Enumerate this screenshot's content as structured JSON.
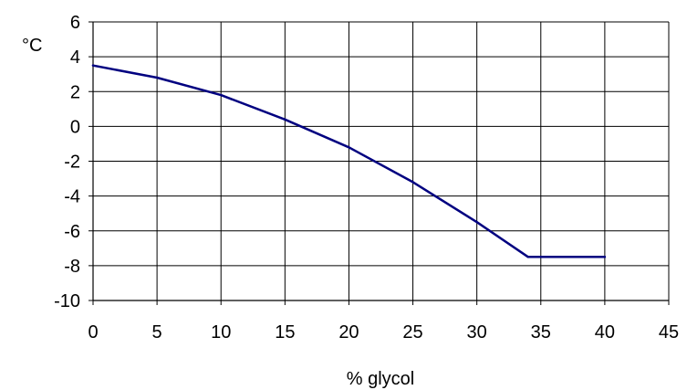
{
  "chart_data": {
    "type": "line",
    "xlabel": "% glycol",
    "ylabel": "°C",
    "xlim": [
      0,
      45
    ],
    "ylim": [
      -10,
      6
    ],
    "x_ticks": [
      0,
      5,
      10,
      15,
      20,
      25,
      30,
      35,
      40,
      45
    ],
    "y_ticks": [
      6,
      4,
      2,
      0,
      -2,
      -4,
      -6,
      -8,
      -10
    ],
    "x_tick_labels": [
      "0",
      "5",
      "10",
      "15",
      "20",
      "25",
      "30",
      "35",
      "40",
      "45"
    ],
    "y_tick_labels": [
      "6",
      "4",
      "2",
      "0",
      "-2",
      "-4",
      "-6",
      "-8",
      "-10"
    ],
    "grid": true,
    "legend": "none",
    "series": [
      {
        "color": "#000080",
        "x": [
          0,
          5,
          10,
          15,
          20,
          25,
          30,
          34,
          40
        ],
        "y": [
          3.5,
          2.8,
          1.8,
          0.4,
          -1.2,
          -3.2,
          -5.5,
          -7.5,
          -7.5
        ]
      }
    ]
  }
}
